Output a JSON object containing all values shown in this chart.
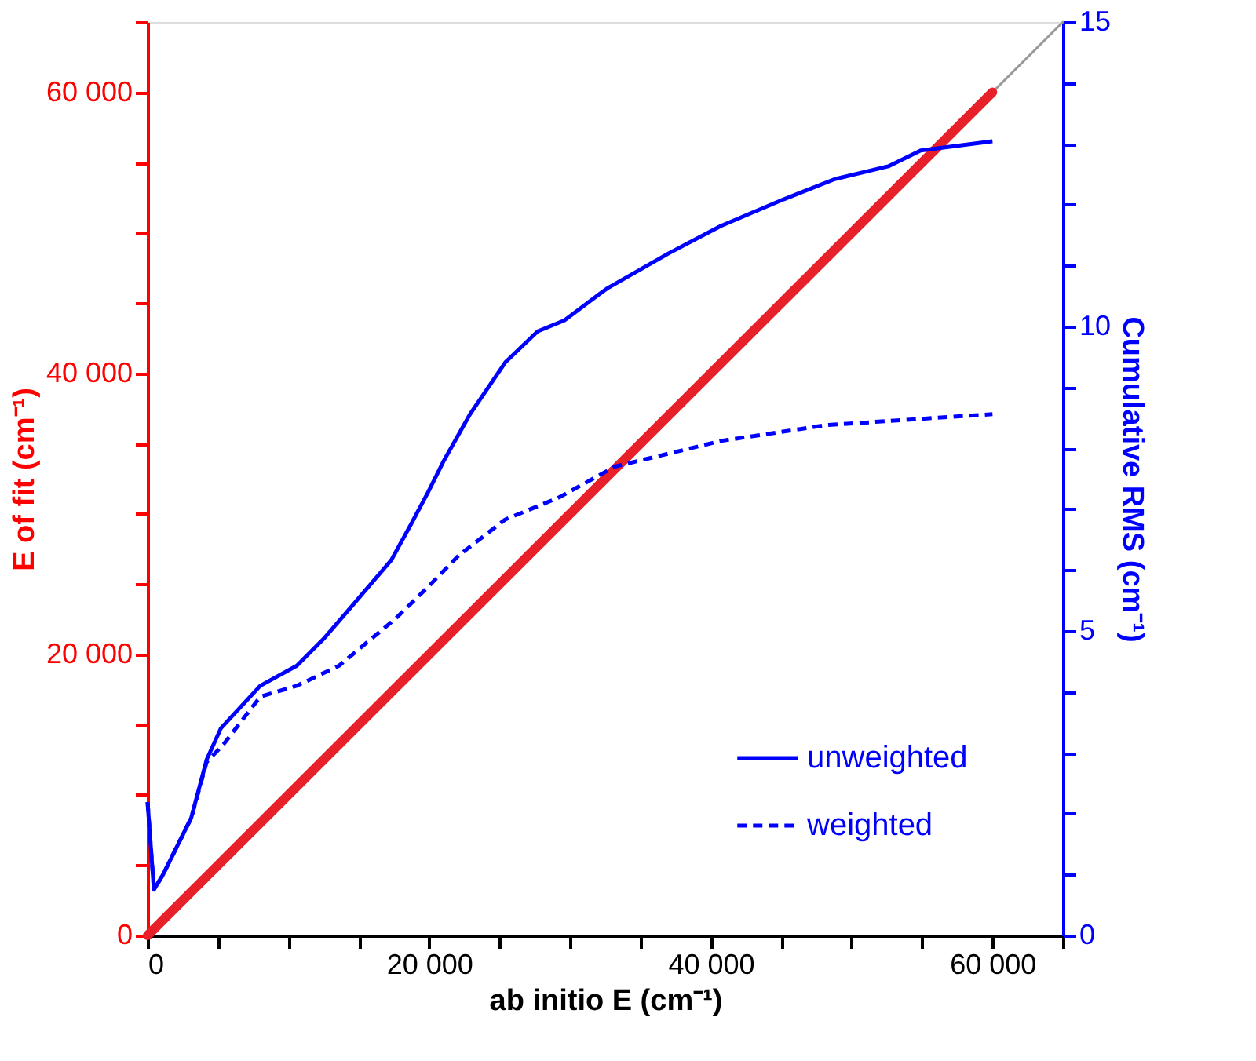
{
  "chart_data": {
    "type": "line",
    "xlabel": "ab initio E (cm⁻¹)",
    "ylabel": "E of fit (cm⁻¹)",
    "y2label": "Cumulative RMS (cm⁻¹)",
    "xlim": [
      0,
      65000
    ],
    "ylim": [
      0,
      65000
    ],
    "y2lim": [
      0,
      15
    ],
    "xticks": [
      0,
      {
        "value": 5000,
        "label": null
      },
      {
        "value": 10000,
        "label": null
      },
      {
        "value": 15000,
        "label": null
      },
      {
        "value": 20000,
        "label": "20 000"
      },
      {
        "value": 25000,
        "label": null
      },
      {
        "value": 30000,
        "label": null
      },
      {
        "value": 35000,
        "label": null
      },
      {
        "value": 40000,
        "label": "40 000"
      },
      {
        "value": 45000,
        "label": null
      },
      {
        "value": 50000,
        "label": null
      },
      {
        "value": 55000,
        "label": null
      },
      {
        "value": 60000,
        "label": "60 000"
      },
      {
        "value": 65000,
        "label": null
      }
    ],
    "yticks": [
      0,
      {
        "value": 5000,
        "label": null
      },
      {
        "value": 10000,
        "label": null
      },
      {
        "value": 15000,
        "label": null
      },
      {
        "value": 20000,
        "label": "20 000"
      },
      {
        "value": 25000,
        "label": null
      },
      {
        "value": 30000,
        "label": null
      },
      {
        "value": 35000,
        "label": null
      },
      {
        "value": 40000,
        "label": "40 000"
      },
      {
        "value": 45000,
        "label": null
      },
      {
        "value": 50000,
        "label": null
      },
      {
        "value": 55000,
        "label": null
      },
      {
        "value": 60000,
        "label": "60 000"
      },
      {
        "value": 65000,
        "label": null
      }
    ],
    "y2ticks": [
      0,
      {
        "value": 1,
        "label": null
      },
      {
        "value": 2,
        "label": null
      },
      {
        "value": 3,
        "label": null
      },
      {
        "value": 4,
        "label": null
      },
      5,
      {
        "value": 6,
        "label": null
      },
      {
        "value": 7,
        "label": null
      },
      {
        "value": 8,
        "label": null
      },
      {
        "value": 9,
        "label": null
      },
      10,
      {
        "value": 11,
        "label": null
      },
      {
        "value": 12,
        "label": null
      },
      {
        "value": 13,
        "label": null
      },
      {
        "value": 14,
        "label": null
      },
      15
    ],
    "grid": false,
    "legend": "bottom right",
    "series": [
      {
        "color": "#999999",
        "axis": "y",
        "line_style": "solid",
        "x": [
          60000,
          65000
        ],
        "values": [
          60000,
          65000
        ]
      },
      {
        "color": "#e8202a",
        "axis": "y",
        "line_style": "solid",
        "x": [
          0,
          60000
        ],
        "values": [
          0,
          60000
        ]
      },
      {
        "name": "unweighted",
        "color": "#0000ff",
        "axis": "y2",
        "line_style": "solid",
        "x": [
          0,
          450,
          1100,
          3100,
          4200,
          5200,
          8000,
          10600,
          12500,
          14700,
          17300,
          18700,
          19900,
          21000,
          22900,
          25400,
          27700,
          29600,
          32600,
          37000,
          40700,
          45200,
          48800,
          52600,
          54900,
          60000
        ],
        "values": [
          2.19,
          0.75,
          1.0,
          1.93,
          2.89,
          3.4,
          4.1,
          4.43,
          4.87,
          5.46,
          6.16,
          6.75,
          7.27,
          7.78,
          8.56,
          9.41,
          9.92,
          10.1,
          10.62,
          11.2,
          11.65,
          12.09,
          12.42,
          12.63,
          12.89,
          13.04
        ]
      },
      {
        "name": "weighted",
        "color": "#0000ff",
        "axis": "y2",
        "line_style": "dashed",
        "x": [
          0,
          450,
          1100,
          3100,
          4200,
          5400,
          8000,
          10600,
          13600,
          17600,
          19900,
          22100,
          25400,
          29200,
          33200,
          40700,
          48200,
          60000
        ],
        "values": [
          2.19,
          0.75,
          1.0,
          1.93,
          2.85,
          3.14,
          3.92,
          4.1,
          4.43,
          5.2,
          5.72,
          6.24,
          6.83,
          7.19,
          7.7,
          8.12,
          8.38,
          8.56
        ]
      }
    ]
  }
}
